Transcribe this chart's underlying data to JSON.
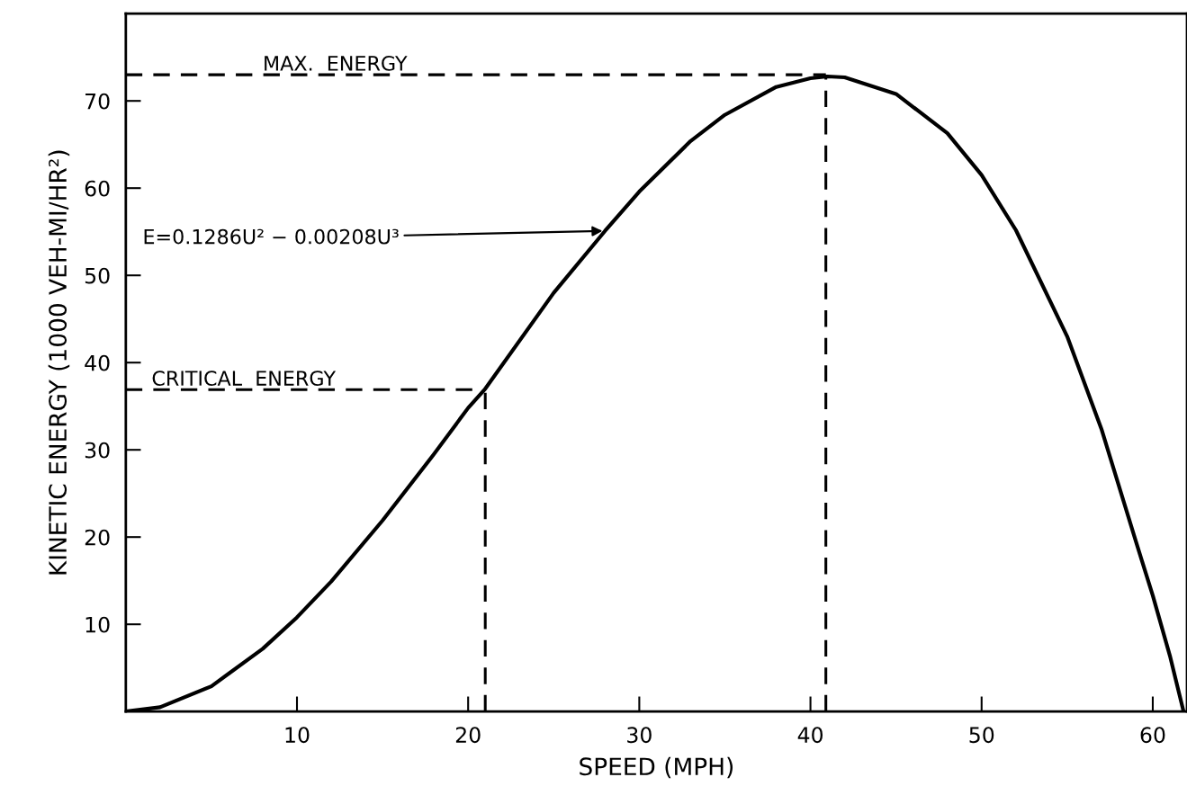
{
  "chart_data": {
    "type": "line",
    "xlabel": "SPEED (MPH)",
    "ylabel": "KINETIC ENERGY (1000 VEH-MI/HR²)",
    "xlim": [
      0,
      62
    ],
    "ylim": [
      0,
      80
    ],
    "xticks": [
      10,
      20,
      30,
      40,
      50,
      60
    ],
    "yticks": [
      10,
      20,
      30,
      40,
      50,
      60,
      70
    ],
    "grid": false,
    "marker": "none",
    "series": [
      {
        "color": "#000000",
        "line_style": "solid",
        "x": [
          0,
          2,
          5,
          8,
          10,
          12,
          15,
          18,
          20,
          21,
          25,
          28,
          30,
          33,
          35,
          38,
          40,
          41,
          42,
          45,
          48,
          50,
          52,
          55,
          57,
          59,
          60,
          61,
          61.8
        ],
        "values": [
          0,
          0.5,
          2.9,
          7.2,
          10.8,
          14.9,
          21.9,
          29.5,
          34.8,
          37.0,
          48.0,
          55.1,
          59.6,
          65.4,
          68.4,
          71.6,
          72.6,
          72.8,
          72.7,
          70.8,
          66.3,
          61.5,
          55.2,
          43.0,
          32.4,
          19.6,
          13.3,
          6.4,
          0
        ]
      },
      {
        "color": "#000000",
        "line_style": "dashed",
        "x": [
          0,
          40.9
        ],
        "values": [
          73,
          73
        ]
      },
      {
        "color": "#000000",
        "line_style": "dashed",
        "x": [
          40.9,
          40.9
        ],
        "values": [
          0,
          73
        ]
      },
      {
        "color": "#000000",
        "line_style": "dashed",
        "x": [
          0,
          21
        ],
        "values": [
          36.9,
          36.9
        ]
      },
      {
        "color": "#000000",
        "line_style": "dashed",
        "x": [
          21,
          21
        ],
        "values": [
          0,
          36.9
        ]
      }
    ],
    "annotations": [
      {
        "text": "MAX.  ENERGY",
        "x": 8,
        "y": 73
      },
      {
        "text": "CRITICAL  ENERGY",
        "x": 1.5,
        "y": 36.9
      },
      {
        "text": "E=0.1286U² − 0.00208U³",
        "x": 28,
        "y": 55.1
      }
    ]
  }
}
